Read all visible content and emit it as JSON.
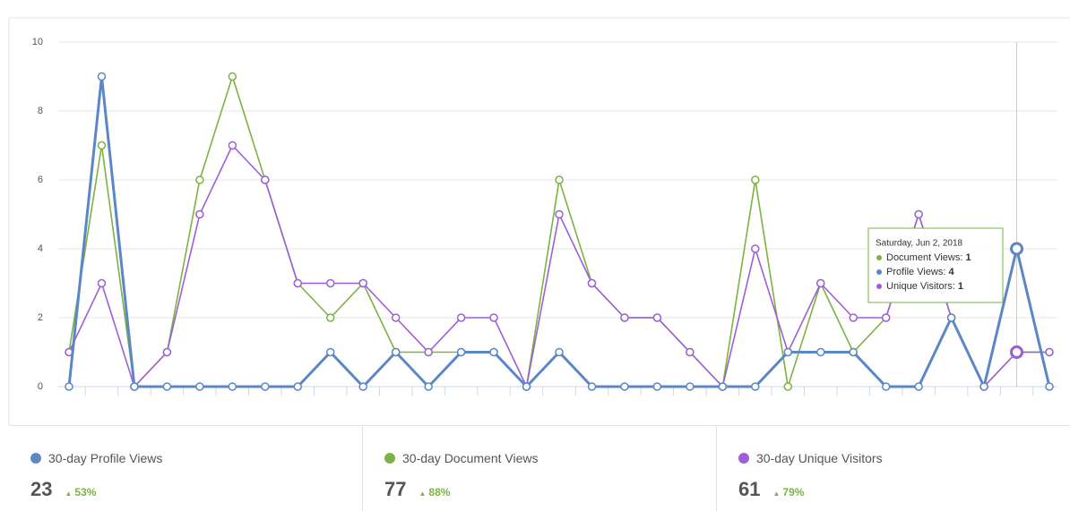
{
  "chart_data": {
    "type": "line",
    "ylim": [
      0,
      10
    ],
    "yticks": [
      0,
      2,
      4,
      6,
      8,
      10
    ],
    "grid": true,
    "series": [
      {
        "name": "Document Views",
        "color": "#7cb342",
        "values": [
          1,
          7,
          0,
          1,
          6,
          9,
          6,
          3,
          2,
          3,
          1,
          1,
          1,
          1,
          0,
          6,
          3,
          2,
          2,
          1,
          0,
          6,
          0,
          3,
          1,
          2,
          5,
          2,
          0,
          1,
          1
        ]
      },
      {
        "name": "Unique Visitors",
        "color": "#9c5fd9",
        "values": [
          1,
          3,
          0,
          1,
          5,
          7,
          6,
          3,
          3,
          3,
          2,
          1,
          2,
          2,
          0,
          5,
          3,
          2,
          2,
          1,
          0,
          4,
          1,
          3,
          2,
          2,
          5,
          2,
          0,
          1,
          1
        ]
      },
      {
        "name": "Profile Views",
        "color": "#5b87c7",
        "values": [
          0,
          9,
          0,
          0,
          0,
          0,
          0,
          0,
          1,
          0,
          1,
          0,
          1,
          1,
          0,
          1,
          0,
          0,
          0,
          0,
          0,
          0,
          1,
          1,
          1,
          0,
          0,
          2,
          0,
          4,
          0
        ]
      }
    ],
    "tooltip": {
      "index": 29,
      "date": "Saturday, Jun 2, 2018",
      "items": [
        {
          "series": 0,
          "label": "Document Views:"
        },
        {
          "series": 2,
          "label": "Profile Views:"
        },
        {
          "series": 1,
          "label": "Unique Visitors:"
        }
      ]
    }
  },
  "summary": [
    {
      "label": "30-day Profile Views",
      "color": "#5b87c7",
      "value": "23",
      "change": "53%"
    },
    {
      "label": "30-day Document Views",
      "color": "#7cb342",
      "value": "77",
      "change": "88%"
    },
    {
      "label": "30-day Unique Visitors",
      "color": "#9c5fd9",
      "value": "61",
      "change": "79%"
    }
  ]
}
